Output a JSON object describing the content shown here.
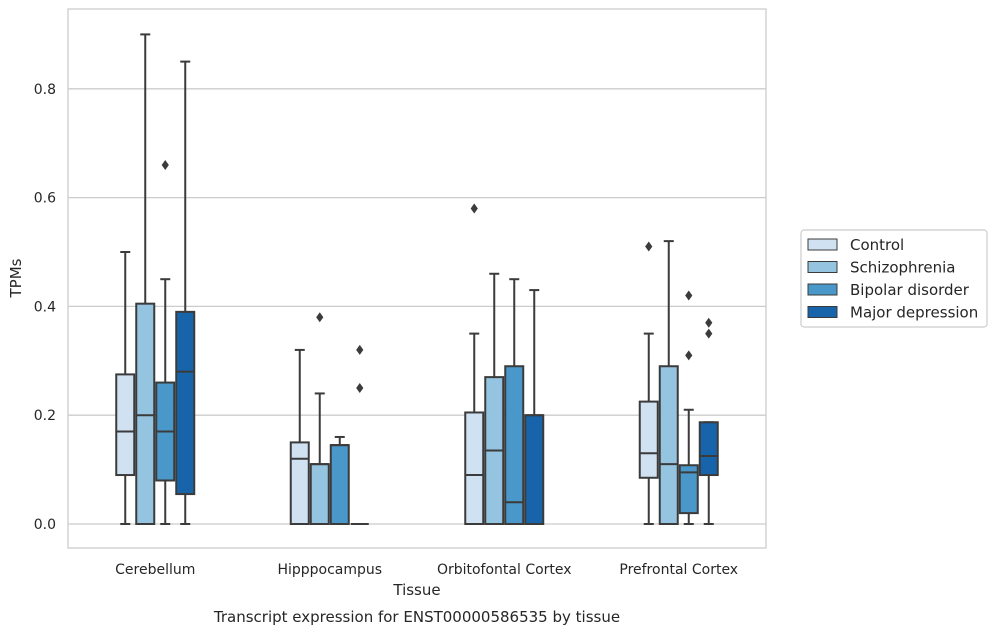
{
  "chart_data": {
    "type": "box",
    "title": "",
    "caption": "Transcript expression for ENST00000586535 by tissue",
    "xlabel": "Tissue",
    "ylabel": "TPMs",
    "ylim": [
      -0.045,
      0.945
    ],
    "yticks": [
      "0.0",
      "0.2",
      "0.4",
      "0.6",
      "0.8"
    ],
    "grid": "horizontal",
    "legend_position": "right",
    "categories": [
      "Cerebellum",
      "Hipppocampus",
      "Orbitofontal Cortex",
      "Prefrontal Cortex"
    ],
    "series": [
      {
        "name": "Control",
        "color": "#d0e1f2",
        "boxes": [
          {
            "whisker_low": 0.0,
            "q1": 0.09,
            "median": 0.17,
            "q3": 0.275,
            "whisker_high": 0.5,
            "outliers": []
          },
          {
            "whisker_low": 0.0,
            "q1": 0.0,
            "median": 0.12,
            "q3": 0.15,
            "whisker_high": 0.32,
            "outliers": []
          },
          {
            "whisker_low": 0.0,
            "q1": 0.0,
            "median": 0.09,
            "q3": 0.205,
            "whisker_high": 0.35,
            "outliers": [
              0.58
            ]
          },
          {
            "whisker_low": 0.0,
            "q1": 0.085,
            "median": 0.13,
            "q3": 0.225,
            "whisker_high": 0.35,
            "outliers": [
              0.51
            ]
          }
        ]
      },
      {
        "name": "Schizophrenia",
        "color": "#94c4df",
        "boxes": [
          {
            "whisker_low": 0.0,
            "q1": 0.0,
            "median": 0.2,
            "q3": 0.405,
            "whisker_high": 0.9,
            "outliers": []
          },
          {
            "whisker_low": 0.0,
            "q1": 0.0,
            "median": 0.11,
            "q3": 0.11,
            "whisker_high": 0.24,
            "outliers": [
              0.38
            ]
          },
          {
            "whisker_low": 0.0,
            "q1": 0.0,
            "median": 0.135,
            "q3": 0.27,
            "whisker_high": 0.46,
            "outliers": []
          },
          {
            "whisker_low": 0.0,
            "q1": 0.0,
            "median": 0.11,
            "q3": 0.29,
            "whisker_high": 0.52,
            "outliers": []
          }
        ]
      },
      {
        "name": "Bipolar disorder",
        "color": "#4a98c9",
        "boxes": [
          {
            "whisker_low": 0.0,
            "q1": 0.08,
            "median": 0.17,
            "q3": 0.26,
            "whisker_high": 0.45,
            "outliers": [
              0.66
            ]
          },
          {
            "whisker_low": 0.0,
            "q1": 0.0,
            "median": 0.145,
            "q3": 0.145,
            "whisker_high": 0.16,
            "outliers": []
          },
          {
            "whisker_low": 0.0,
            "q1": 0.0,
            "median": 0.04,
            "q3": 0.29,
            "whisker_high": 0.45,
            "outliers": []
          },
          {
            "whisker_low": 0.0,
            "q1": 0.02,
            "median": 0.095,
            "q3": 0.108,
            "whisker_high": 0.21,
            "outliers": [
              0.31,
              0.42
            ]
          }
        ]
      },
      {
        "name": "Major depression",
        "color": "#1764ab",
        "boxes": [
          {
            "whisker_low": 0.0,
            "q1": 0.055,
            "median": 0.28,
            "q3": 0.39,
            "whisker_high": 0.85,
            "outliers": []
          },
          {
            "whisker_low": 0.0,
            "q1": 0.0,
            "median": 0.0,
            "q3": 0.0,
            "whisker_high": 0.0,
            "outliers": [
              0.25,
              0.32
            ]
          },
          {
            "whisker_low": 0.0,
            "q1": 0.0,
            "median": 0.2,
            "q3": 0.2,
            "whisker_high": 0.43,
            "outliers": []
          },
          {
            "whisker_low": 0.0,
            "q1": 0.09,
            "median": 0.125,
            "q3": 0.187,
            "whisker_high": 0.187,
            "outliers": [
              0.35,
              0.37
            ]
          }
        ]
      }
    ]
  }
}
